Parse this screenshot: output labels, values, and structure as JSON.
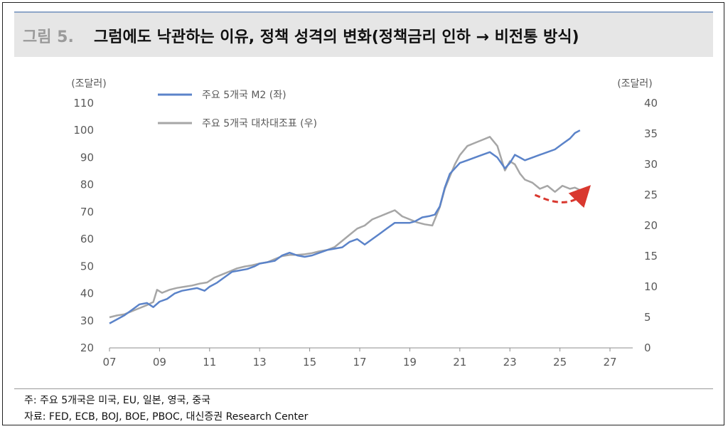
{
  "header": {
    "figure_no": "그림 5.",
    "title": "그럼에도 낙관하는 이유, 정책 성격의 변화(정책금리 인하 → 비전통 방식)"
  },
  "footer": {
    "note": "주: 주요 5개국은 미국, EU, 일본, 영국, 중국",
    "source": "자료: FED, ECB, BOJ, BOE, PBOC, 대신증권 Research Center"
  },
  "chart_data": {
    "type": "line",
    "left_unit": "(조달러)",
    "right_unit": "(조달러)",
    "x_ticks": [
      "07",
      "09",
      "11",
      "13",
      "15",
      "17",
      "19",
      "21",
      "23",
      "25",
      "27"
    ],
    "xlim": [
      2007,
      2027
    ],
    "y_left_ticks": [
      "20",
      "30",
      "40",
      "50",
      "60",
      "70",
      "80",
      "90",
      "100",
      "110"
    ],
    "ylim_left": [
      20,
      110
    ],
    "y_right_ticks": [
      "0",
      "5",
      "10",
      "15",
      "20",
      "25",
      "30",
      "35",
      "40"
    ],
    "ylim_right": [
      0,
      40
    ],
    "colors": {
      "m2": "#5b83c9",
      "balance": "#a6a6a6",
      "arrow": "#d9382f"
    },
    "series": [
      {
        "name": "주요 5개국 M2 (좌)",
        "axis": "left",
        "x": [
          2007.0,
          2007.3,
          2007.6,
          2007.9,
          2008.2,
          2008.5,
          2008.75,
          2009.0,
          2009.3,
          2009.6,
          2009.9,
          2010.2,
          2010.5,
          2010.8,
          2011.0,
          2011.3,
          2011.6,
          2011.9,
          2012.2,
          2012.5,
          2012.8,
          2013.0,
          2013.3,
          2013.6,
          2013.9,
          2014.2,
          2014.5,
          2014.8,
          2015.1,
          2015.4,
          2015.7,
          2016.0,
          2016.3,
          2016.6,
          2016.9,
          2017.2,
          2017.5,
          2017.8,
          2018.1,
          2018.4,
          2018.7,
          2019.0,
          2019.2,
          2019.5,
          2019.8,
          2020.0,
          2020.2,
          2020.4,
          2020.6,
          2020.8,
          2021.0,
          2021.3,
          2021.6,
          2021.9,
          2022.2,
          2022.5,
          2022.8,
          2023.0,
          2023.2,
          2023.4,
          2023.6,
          2023.9,
          2024.2,
          2024.5,
          2024.8,
          2025.1,
          2025.4,
          2025.6,
          2025.8
        ],
        "values": [
          29,
          30.5,
          32,
          34,
          36,
          36.5,
          35,
          37,
          38,
          40,
          41,
          41.5,
          42,
          41,
          42.5,
          44,
          46,
          48,
          48.5,
          49,
          50,
          51,
          51.5,
          52,
          54,
          55,
          54,
          53.5,
          54,
          55,
          56,
          56.5,
          57,
          59,
          60,
          58,
          60,
          62,
          64,
          66,
          66,
          66,
          66.5,
          68,
          68.5,
          69,
          72,
          79,
          84,
          86,
          88,
          89,
          90,
          91,
          92,
          90,
          86,
          88,
          91,
          90,
          89,
          90,
          91,
          92,
          93,
          95,
          97,
          99,
          100
        ]
      },
      {
        "name": "주요 5개국 대차대조표 (우)",
        "axis": "right",
        "x": [
          2007.0,
          2007.3,
          2007.6,
          2007.9,
          2008.2,
          2008.5,
          2008.75,
          2008.9,
          2009.1,
          2009.4,
          2009.7,
          2010.0,
          2010.3,
          2010.6,
          2010.9,
          2011.2,
          2011.5,
          2011.8,
          2012.1,
          2012.4,
          2012.7,
          2013.0,
          2013.3,
          2013.6,
          2013.9,
          2014.2,
          2014.5,
          2014.8,
          2015.1,
          2015.4,
          2015.7,
          2016.0,
          2016.3,
          2016.6,
          2016.9,
          2017.2,
          2017.5,
          2017.8,
          2018.1,
          2018.4,
          2018.7,
          2019.0,
          2019.3,
          2019.6,
          2019.9,
          2020.0,
          2020.2,
          2020.4,
          2020.6,
          2020.8,
          2021.0,
          2021.3,
          2021.6,
          2021.9,
          2022.2,
          2022.5,
          2022.8,
          2023.0,
          2023.2,
          2023.4,
          2023.6,
          2023.9,
          2024.2,
          2024.5,
          2024.8,
          2025.1,
          2025.4,
          2025.6,
          2025.8
        ],
        "values": [
          5,
          5.3,
          5.5,
          6,
          6.5,
          7,
          7.5,
          9.5,
          9,
          9.5,
          9.8,
          10,
          10.2,
          10.5,
          10.7,
          11.5,
          12,
          12.5,
          13,
          13.3,
          13.5,
          13.8,
          14,
          14.5,
          15,
          15.2,
          15.2,
          15.3,
          15.5,
          15.8,
          16,
          16.5,
          17.5,
          18.5,
          19.5,
          20,
          21,
          21.5,
          22,
          22.5,
          21.5,
          21,
          20.5,
          20.2,
          20,
          21,
          23,
          26,
          28,
          30,
          31.5,
          33,
          33.5,
          34,
          34.5,
          33,
          29,
          30.5,
          30,
          28.5,
          27.5,
          27,
          26,
          26.5,
          25.5,
          26.5,
          26,
          26.2,
          25.8
        ]
      }
    ],
    "projection": {
      "x": [
        2024.0,
        2024.6,
        2025.2,
        2025.7,
        2026.0
      ],
      "values_right": [
        25.0,
        24.0,
        23.7,
        24.3,
        25.6
      ]
    }
  }
}
